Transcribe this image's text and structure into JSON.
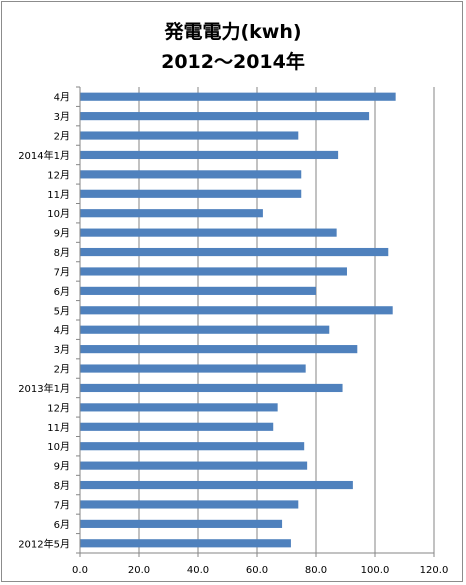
{
  "chart_data": {
    "type": "bar",
    "orientation": "horizontal",
    "title_lines": [
      "発電電力(kwh)",
      "2012～2014年"
    ],
    "xlabel": "",
    "ylabel": "",
    "xlim": [
      0,
      120
    ],
    "x_ticks": [
      "0.0",
      "20.0",
      "40.0",
      "60.0",
      "80.0",
      "100.0",
      "120.0"
    ],
    "grid": "vertical major gridlines",
    "legend": "none",
    "bar_color": "#4f81bd",
    "categories": [
      "2012年5月",
      "6月",
      "7月",
      "8月",
      "9月",
      "10月",
      "11月",
      "12月",
      "2013年1月",
      "2月",
      "3月",
      "4月",
      "5月",
      "6月",
      "7月",
      "8月",
      "9月",
      "10月",
      "11月",
      "12月",
      "2014年1月",
      "2月",
      "3月",
      "4月"
    ],
    "values": [
      71.5,
      68.5,
      74,
      92.5,
      77,
      76,
      65.5,
      67,
      89,
      76.5,
      94,
      84.5,
      106,
      80,
      90.5,
      104.5,
      87,
      62,
      75,
      75,
      87.5,
      74,
      98,
      107
    ]
  }
}
